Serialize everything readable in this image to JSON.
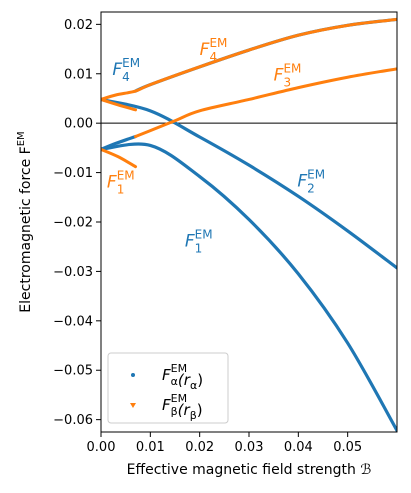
{
  "chart_data": {
    "type": "line",
    "xlabel": "Effective magnetic field strength ℬ",
    "ylabel": "Electromagnetic force F",
    "ylabel_sup": "EM",
    "xlim": [
      0.0,
      0.06
    ],
    "ylim": [
      -0.0625,
      0.0225
    ],
    "xticks": [
      0.0,
      0.01,
      0.02,
      0.03,
      0.04,
      0.05
    ],
    "xtick_labels": [
      "0.00",
      "0.01",
      "0.02",
      "0.03",
      "0.04",
      "0.05"
    ],
    "yticks": [
      -0.06,
      -0.05,
      -0.04,
      -0.03,
      -0.02,
      -0.01,
      0.0,
      0.01,
      0.02
    ],
    "ytick_labels": [
      "−0.06",
      "−0.05",
      "−0.04",
      "−0.03",
      "−0.02",
      "−0.01",
      "0.00",
      "0.01",
      "0.02"
    ],
    "zero_line": true,
    "grid": false,
    "legend_position": "bottom-left",
    "colors": {
      "alpha": "#1f77b4",
      "beta": "#ff7f0e"
    },
    "series": [
      {
        "id": "F1_alpha",
        "group": "alpha",
        "x": [
          0.0,
          0.01,
          0.02,
          0.03,
          0.04,
          0.05,
          0.06
        ],
        "y": [
          -0.0053,
          -0.0045,
          -0.0108,
          -0.0195,
          -0.0305,
          -0.0445,
          -0.0622
        ]
      },
      {
        "id": "F2_alpha",
        "group": "alpha",
        "x": [
          0.0,
          0.01,
          0.02,
          0.03,
          0.04,
          0.05,
          0.06
        ],
        "y": [
          0.0048,
          0.0025,
          -0.0028,
          -0.0085,
          -0.0148,
          -0.0218,
          -0.0293
        ]
      },
      {
        "id": "F3_alpha",
        "group": "alpha",
        "x": [
          0.0,
          0.003,
          0.007
        ],
        "y": [
          -0.0053,
          -0.0041,
          -0.0027
        ]
      },
      {
        "id": "F4_alpha",
        "group": "alpha",
        "x": [
          0.007,
          0.01,
          0.02,
          0.03,
          0.04,
          0.05,
          0.06
        ],
        "y": [
          0.0065,
          0.0078,
          0.0114,
          0.0148,
          0.0178,
          0.0198,
          0.021
        ]
      },
      {
        "id": "F1_beta",
        "group": "beta",
        "x": [
          0.0,
          0.0035,
          0.007
        ],
        "y": [
          -0.0053,
          -0.0068,
          -0.0088
        ]
      },
      {
        "id": "F2_beta",
        "group": "beta",
        "x": [
          0.0,
          0.0035,
          0.007
        ],
        "y": [
          0.0048,
          0.0037,
          0.0027
        ]
      },
      {
        "id": "F3_beta",
        "group": "beta",
        "x": [
          0.007,
          0.01,
          0.015,
          0.02,
          0.03,
          0.04,
          0.05,
          0.06
        ],
        "y": [
          -0.0027,
          -0.0015,
          0.0005,
          0.0025,
          0.0048,
          0.0072,
          0.0093,
          0.011
        ]
      },
      {
        "id": "F4_beta",
        "group": "beta",
        "x": [
          0.0,
          0.003,
          0.007,
          0.01,
          0.02,
          0.03,
          0.04,
          0.05,
          0.06
        ],
        "y": [
          0.0048,
          0.0057,
          0.0065,
          0.0078,
          0.0114,
          0.0148,
          0.0178,
          0.0198,
          0.021
        ]
      }
    ],
    "annotations": [
      {
        "id": "F4_alpha",
        "base": "F",
        "sup": "EM",
        "sub": "4",
        "x": 0.0023,
        "y": 0.0098,
        "color": "alpha"
      },
      {
        "id": "F4_beta",
        "base": "F",
        "sup": "EM",
        "sub": "4",
        "x": 0.02,
        "y": 0.0138,
        "color": "beta"
      },
      {
        "id": "F3_beta",
        "base": "F",
        "sup": "EM",
        "sub": "3",
        "x": 0.035,
        "y": 0.0086,
        "color": "beta"
      },
      {
        "id": "F1_beta",
        "base": "F",
        "sup": "EM",
        "sub": "1",
        "x": 0.0012,
        "y": -0.013,
        "color": "beta"
      },
      {
        "id": "F2_alpha",
        "base": "F",
        "sup": "EM",
        "sub": "2",
        "x": 0.0398,
        "y": -0.0128,
        "color": "alpha"
      },
      {
        "id": "F1_alpha",
        "base": "F",
        "sup": "EM",
        "sub": "1",
        "x": 0.017,
        "y": -0.025,
        "color": "alpha"
      }
    ],
    "legend": [
      {
        "base": "F",
        "sup": "EM",
        "sub": "α",
        "arg": "(r",
        "arg_sub": "α",
        "arg_close": ")",
        "color": "alpha",
        "marker": "dot"
      },
      {
        "base": "F",
        "sup": "EM",
        "sub": "β",
        "arg": "(r",
        "arg_sub": "β",
        "arg_close": ")",
        "color": "beta",
        "marker": "triangle"
      }
    ]
  }
}
